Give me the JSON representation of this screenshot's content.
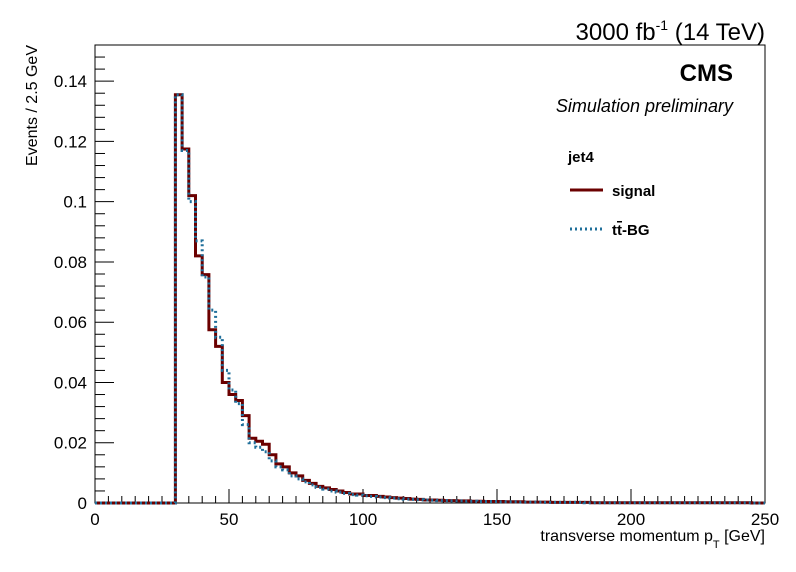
{
  "chart_data": {
    "type": "line",
    "lumi": {
      "main": "3000 fb",
      "sup": "-1",
      "rest": " (14 TeV)"
    },
    "experiment": "CMS",
    "subtitle": "Simulation preliminary",
    "xlabel": {
      "main": "transverse momentum p",
      "sub": "T",
      "unit": " [GeV]"
    },
    "ylabel": "Events / 2.5 GeV",
    "xlim": [
      0,
      250
    ],
    "ylim": [
      0,
      0.152
    ],
    "bin_width": 2.5,
    "x_ticks": [
      0,
      50,
      100,
      150,
      200,
      250
    ],
    "y_ticks": [
      {
        "value": 0,
        "label": "0"
      },
      {
        "value": 0.02,
        "label": "0.02"
      },
      {
        "value": 0.04,
        "label": "0.04"
      },
      {
        "value": 0.06,
        "label": "0.06"
      },
      {
        "value": 0.08,
        "label": "0.08"
      },
      {
        "value": 0.1,
        "label": "0.1"
      },
      {
        "value": 0.12,
        "label": "0.12"
      },
      {
        "value": 0.14,
        "label": "0.14"
      }
    ],
    "legend": {
      "header": "jet4",
      "position": "top-right",
      "entries": [
        {
          "label": "signal",
          "color": "#6b0000",
          "style": "solid"
        },
        {
          "label_parts": {
            "pre": "t",
            "bar": "t",
            "post": "-BG"
          },
          "color": "#1f6f9a",
          "style": "dotted"
        }
      ]
    },
    "series": [
      {
        "color": "#6b0000",
        "style": "solid",
        "start": 30,
        "values": [
          0.1355,
          0.1175,
          0.102,
          0.082,
          0.0758,
          0.0575,
          0.052,
          0.04,
          0.036,
          0.034,
          0.029,
          0.0215,
          0.0205,
          0.0195,
          0.016,
          0.013,
          0.012,
          0.01,
          0.009,
          0.0075,
          0.0065,
          0.0055,
          0.005,
          0.0045,
          0.004,
          0.0035,
          0.003,
          0.003,
          0.0025,
          0.0025,
          0.0022,
          0.002,
          0.0018,
          0.0016,
          0.0015,
          0.0013,
          0.0012,
          0.001,
          0.001,
          0.0009,
          0.0008,
          0.0008,
          0.0007,
          0.0007,
          0.0006,
          0.0006,
          0.0005,
          0.0005,
          0.0005,
          0.0004,
          0.0004,
          0.0004,
          0.0003,
          0.0003,
          0.0003,
          0.0003,
          0.0002,
          0.0002,
          0.0002,
          0.0002,
          0.0002,
          0.0002,
          0.0001,
          0.0001,
          0.0001,
          0.0001,
          0.0001,
          0.0001,
          0.0001,
          0.0001,
          0.0001,
          0.0001,
          0.0001,
          0.0001,
          0.0001,
          0.0001,
          0.0001,
          0.0001,
          0.0001,
          0.0001,
          0.0001,
          0.0001,
          0.0001,
          0.0001,
          0.0001,
          0.0001,
          0,
          0
        ]
      },
      {
        "color": "#1f6f9a",
        "style": "dotted",
        "start": 30,
        "values": [
          0.1355,
          0.117,
          0.1,
          0.087,
          0.075,
          0.064,
          0.055,
          0.044,
          0.0375,
          0.033,
          0.026,
          0.02,
          0.0185,
          0.017,
          0.014,
          0.012,
          0.011,
          0.009,
          0.008,
          0.007,
          0.006,
          0.0052,
          0.0046,
          0.004,
          0.0036,
          0.0032,
          0.0028,
          0.0026,
          0.0024,
          0.0022,
          0.002,
          0.0018,
          0.0016,
          0.0014,
          0.0013,
          0.0012,
          0.0011,
          0.001,
          0.0009,
          0.0008,
          0.0008,
          0.0007,
          0.0007,
          0.0006,
          0.0006,
          0.0005,
          0.0005,
          0.0005,
          0.0004,
          0.0004,
          0.0004,
          0.0003,
          0.0003,
          0.0003,
          0.0003,
          0.0002,
          0.0002,
          0.0002,
          0.0002,
          0.0002,
          0.0002,
          0.0001,
          0.0001,
          0.0001,
          0.0001,
          0.0001,
          0.0001,
          0.0001,
          0.0001,
          0.0001,
          0.0001,
          0.0001,
          0.0001,
          0.0001,
          0.0001,
          0.0001,
          0.0001,
          0.0001,
          0.0001,
          0.0001,
          0.0001,
          0.0001,
          0.0001,
          0.0001,
          0.0001,
          0.0001,
          0,
          0
        ]
      }
    ]
  }
}
